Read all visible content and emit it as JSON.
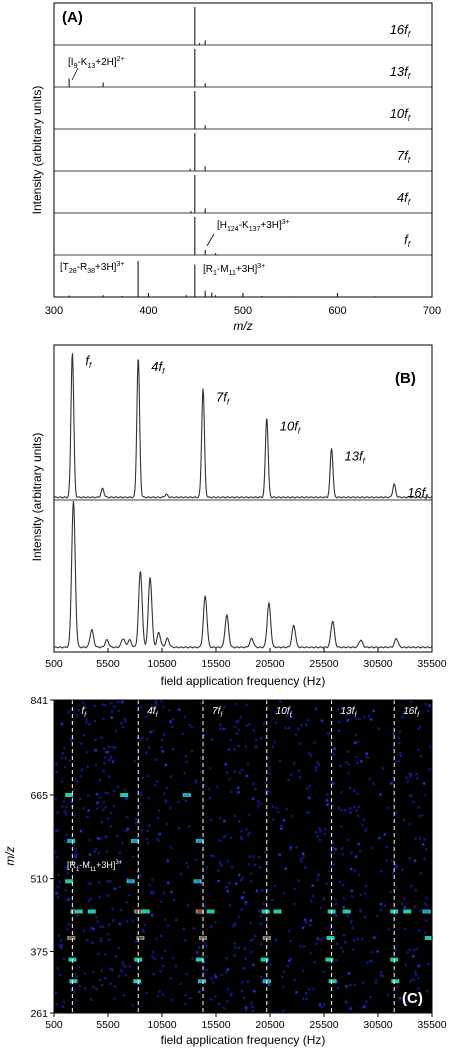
{
  "panels": {
    "A": {
      "label": "(A)",
      "ylabel": "Intensity (arbitrary units)",
      "xlabel": "m/z",
      "xlim": [
        300,
        700
      ],
      "xticks": [
        "300",
        "400",
        "500",
        "600",
        "700"
      ],
      "rows": [
        {
          "label": "16f",
          "sub": "f"
        },
        {
          "label": "13f",
          "sub": "f"
        },
        {
          "label": "10f",
          "sub": "f"
        },
        {
          "label": "7f",
          "sub": "f"
        },
        {
          "label": "4f",
          "sub": "f"
        },
        {
          "label": "f",
          "sub": "f"
        },
        {
          "label": "",
          "sub": ""
        }
      ],
      "annotations": [
        {
          "text": "[I9-K13+2H]2+"
        },
        {
          "text": "[H124-K137+3H]3+"
        },
        {
          "text": "[T28-R38+3H]3+"
        },
        {
          "text": "[R1-M11+3H]3+"
        }
      ]
    },
    "B": {
      "label": "(B)",
      "ylabel": "Intensity (arbitrary units)",
      "xlabel": "field application frequency (Hz)",
      "xlim": [
        500,
        35500
      ],
      "xticks": [
        "500",
        "5500",
        "10500",
        "15500",
        "20500",
        "25500",
        "30500",
        "35500"
      ],
      "peak_labels": [
        {
          "text": "f",
          "sub": "f"
        },
        {
          "text": "4f",
          "sub": "f"
        },
        {
          "text": "7f",
          "sub": "f"
        },
        {
          "text": "10f",
          "sub": "f"
        },
        {
          "text": "13f",
          "sub": "f"
        },
        {
          "text": "16f",
          "sub": "f"
        }
      ]
    },
    "C": {
      "label": "(C)",
      "ylabel": "m/z",
      "xlabel": "field application frequency (Hz)",
      "xlim": [
        500,
        35500
      ],
      "xticks": [
        "500",
        "5500",
        "10500",
        "15500",
        "20500",
        "25500",
        "30500",
        "35500"
      ],
      "yticks": [
        "261",
        "375",
        "510",
        "665",
        "841"
      ],
      "annotation": {
        "text": "[R1-M11+3H]3+"
      },
      "harmonic_labels": [
        {
          "text": "f",
          "sub": "f"
        },
        {
          "text": "4f",
          "sub": "f"
        },
        {
          "text": "7f",
          "sub": "f"
        },
        {
          "text": "10f",
          "sub": "f"
        },
        {
          "text": "13f",
          "sub": "f"
        },
        {
          "text": "16f",
          "sub": "f"
        }
      ]
    }
  },
  "chart_data": [
    {
      "type": "line",
      "panel": "A",
      "xlabel": "m/z",
      "ylabel": "Intensity (arbitrary units)",
      "xlim": [
        300,
        700
      ],
      "series": [
        {
          "name": "16f_f",
          "peaks": [
            [
              449,
              1.0
            ],
            [
              460,
              0.12
            ],
            [
              454,
              0.05
            ]
          ]
        },
        {
          "name": "13f_f",
          "peaks": [
            [
              316,
              0.22
            ],
            [
              352,
              0.12
            ],
            [
              449,
              1.0
            ],
            [
              460,
              0.1
            ]
          ]
        },
        {
          "name": "10f_f",
          "peaks": [
            [
              449,
              1.0
            ],
            [
              460,
              0.1
            ]
          ]
        },
        {
          "name": "7f_f",
          "peaks": [
            [
              449,
              1.0
            ],
            [
              460,
              0.12
            ],
            [
              444,
              0.06
            ]
          ]
        },
        {
          "name": "4f_f",
          "peaks": [
            [
              449,
              1.0
            ],
            [
              460,
              0.12
            ],
            [
              445,
              0.05
            ]
          ]
        },
        {
          "name": "f_f",
          "peaks": [
            [
              449,
              1.0
            ],
            [
              460,
              0.13
            ],
            [
              471,
              0.05
            ]
          ]
        },
        {
          "name": "",
          "peaks": [
            [
              316,
              0.04
            ],
            [
              352,
              0.05
            ],
            [
              372,
              0.03
            ],
            [
              389,
              1.0
            ],
            [
              440,
              0.05
            ],
            [
              449,
              0.9
            ],
            [
              460,
              0.18
            ],
            [
              467,
              0.12
            ],
            [
              471,
              0.05
            ],
            [
              500,
              0.03
            ],
            [
              520,
              0.03
            ],
            [
              550,
              0.02
            ],
            [
              590,
              0.02
            ],
            [
              640,
              0.02
            ]
          ]
        }
      ],
      "colors": {
        "line": "#1a1a1a"
      }
    },
    {
      "type": "line",
      "panel": "B",
      "xlabel": "field application frequency (Hz)",
      "ylabel": "Intensity (arbitrary units)",
      "xlim": [
        500,
        35500
      ],
      "series": [
        {
          "name": "",
          "peaks": [
            [
              2200,
              1.0
            ],
            [
              5000,
              0.06
            ],
            [
              8300,
              0.96
            ],
            [
              10900,
              0.02
            ],
            [
              14300,
              0.75
            ],
            [
              20200,
              0.55
            ],
            [
              26200,
              0.34
            ],
            [
              32000,
              0.09
            ]
          ]
        },
        {
          "name": "",
          "peaks": [
            [
              2300,
              1.0
            ],
            [
              4000,
              0.12
            ],
            [
              5400,
              0.05
            ],
            [
              6900,
              0.06
            ],
            [
              7500,
              0.05
            ],
            [
              8500,
              0.52
            ],
            [
              9400,
              0.48
            ],
            [
              10200,
              0.1
            ],
            [
              11000,
              0.06
            ],
            [
              14500,
              0.35
            ],
            [
              16500,
              0.22
            ],
            [
              18800,
              0.06
            ],
            [
              20400,
              0.3
            ],
            [
              22700,
              0.15
            ],
            [
              26300,
              0.18
            ],
            [
              28900,
              0.05
            ],
            [
              32200,
              0.06
            ]
          ]
        }
      ],
      "colors": {
        "line": "#333333"
      }
    },
    {
      "type": "heatmap",
      "panel": "C",
      "xlabel": "field application frequency (Hz)",
      "ylabel": "m/z",
      "xlim": [
        500,
        35500
      ],
      "ylim": [
        261,
        841
      ],
      "harmonic_frequencies": [
        2200,
        8300,
        14300,
        20200,
        26200,
        32000
      ],
      "series": [
        {
          "name": "",
          "points": [
            [
              2400,
              449,
              1.0
            ],
            [
              2800,
              449,
              0.8
            ],
            [
              4000,
              449,
              0.6
            ],
            [
              8300,
              449,
              0.9
            ],
            [
              9000,
              449,
              0.7
            ],
            [
              14000,
              449,
              0.9
            ],
            [
              15000,
              449,
              0.7
            ],
            [
              20100,
              449,
              0.8
            ],
            [
              21200,
              449,
              0.6
            ],
            [
              26200,
              449,
              0.7
            ],
            [
              27600,
              449,
              0.6
            ],
            [
              32000,
              449,
              0.6
            ],
            [
              33200,
              449,
              0.6
            ],
            [
              35000,
              449,
              0.5
            ]
          ]
        },
        {
          "name": "",
          "points": [
            [
              2100,
              400,
              0.95
            ],
            [
              8500,
              400,
              0.9
            ],
            [
              14300,
              400,
              0.95
            ],
            [
              20200,
              400,
              0.95
            ],
            [
              26100,
              400,
              0.6
            ],
            [
              35200,
              400,
              0.6
            ]
          ]
        },
        {
          "name": "",
          "points": [
            [
              2200,
              360,
              0.6
            ],
            [
              8300,
              360,
              0.7
            ],
            [
              14000,
              360,
              0.6
            ],
            [
              20000,
              360,
              0.6
            ],
            [
              26000,
              360,
              0.6
            ],
            [
              32000,
              360,
              0.6
            ],
            [
              2300,
              320,
              0.6
            ],
            [
              8200,
              320,
              0.6
            ],
            [
              14200,
              320,
              0.5
            ],
            [
              20200,
              320,
              0.5
            ],
            [
              26300,
              320,
              0.6
            ],
            [
              32100,
              320,
              0.6
            ]
          ]
        },
        {
          "name": "",
          "points": [
            [
              1900,
              665,
              0.6
            ],
            [
              7000,
              665,
              0.6
            ],
            [
              12800,
              665,
              0.5
            ],
            [
              2100,
              580,
              0.5
            ],
            [
              8000,
              580,
              0.5
            ],
            [
              14000,
              580,
              0.5
            ],
            [
              1900,
              505,
              0.6
            ],
            [
              7600,
              505,
              0.5
            ],
            [
              13800,
              505,
              0.5
            ]
          ]
        }
      ],
      "colors": {
        "background": "#000000",
        "low": "#1a1aa0",
        "mid": "#22ccaa",
        "high": "#dd2222",
        "guide": "#ffffff"
      }
    }
  ]
}
